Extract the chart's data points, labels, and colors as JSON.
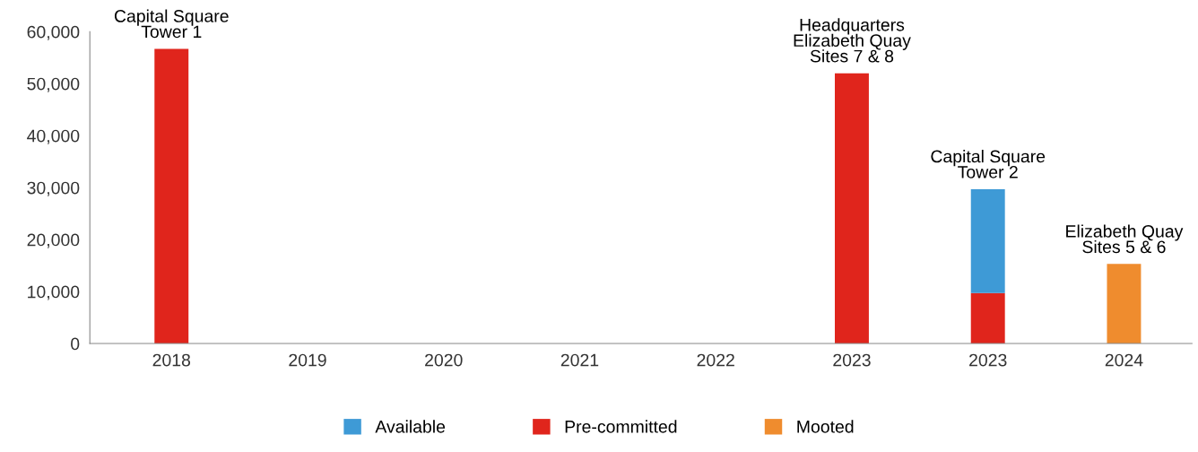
{
  "chart_data": {
    "type": "bar",
    "stacked": true,
    "categories": [
      "2018",
      "2019",
      "2020",
      "2021",
      "2022",
      "2023",
      "2023",
      "2024"
    ],
    "series": [
      {
        "name": "Pre-committed",
        "color": "#e0251c",
        "values": [
          56700,
          null,
          null,
          null,
          null,
          52000,
          9700,
          null
        ]
      },
      {
        "name": "Available",
        "color": "#3e9ad6",
        "values": [
          null,
          null,
          null,
          null,
          null,
          null,
          20000,
          null
        ]
      },
      {
        "name": "Mooted",
        "color": "#ef8c2e",
        "values": [
          null,
          null,
          null,
          null,
          null,
          null,
          null,
          15300
        ]
      }
    ],
    "ylim": [
      0,
      60000
    ],
    "yticks": [
      {
        "value": 0,
        "label": "0"
      },
      {
        "value": 10000,
        "label": "10,000"
      },
      {
        "value": 20000,
        "label": "20,000"
      },
      {
        "value": 30000,
        "label": "30,000"
      },
      {
        "value": 40000,
        "label": "40,000"
      },
      {
        "value": 50000,
        "label": "50,000"
      },
      {
        "value": 60000,
        "label": "60,000"
      }
    ],
    "annotations": [
      "Capital Square\nTower 1",
      "Headquarters\nElizabeth Quay\nSites 7 & 8",
      "Capital Square\nTower 2",
      "Elizabeth Quay\nSites 5 & 6"
    ],
    "grid": false,
    "legend": "bottom"
  }
}
